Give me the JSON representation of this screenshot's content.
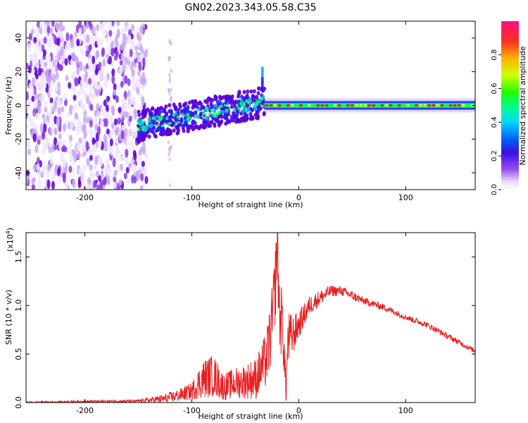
{
  "title": "GN02.2023.343.05.58.C35",
  "chart_data": [
    {
      "type": "heatmap",
      "xlabel": "Height of straight line (km)",
      "ylabel": "Frequency (Hz)",
      "xlim": [
        -255,
        165
      ],
      "ylim": [
        -50,
        50
      ],
      "xticks": [
        -200,
        -100,
        0,
        100
      ],
      "yticks": [
        -40,
        -20,
        0,
        20,
        40
      ],
      "colorbar": {
        "label": "Normalized spectral amplitude",
        "range": [
          0,
          1
        ],
        "ticks": [
          "0.0",
          "0.2",
          "0.4",
          "0.6",
          "0.8"
        ]
      },
      "features": {
        "noise_region_x": [
          -255,
          -142
        ],
        "rising_band": {
          "x_start": -150,
          "x_end": -32,
          "freq_start": -12,
          "freq_end": 2
        },
        "spike": {
          "x": -34,
          "freq_range": [
            10,
            22
          ]
        },
        "stable_line": {
          "x_start": -32,
          "x_end": 165,
          "freq": 0
        }
      },
      "colors": [
        "#f0e6ff",
        "#c9a8f5",
        "#8a3be8",
        "#5a00d6",
        "#2020ff",
        "#00b0ff",
        "#00ff66",
        "#ffff00",
        "#ff2020"
      ]
    },
    {
      "type": "line",
      "xlabel": "Height of straight line (km)",
      "ylabel": "SNR (10 * v/v)",
      "y_multiplier": "(x10",
      "y_multiplier_exp": "4",
      "xlim": [
        -255,
        165
      ],
      "ylim": [
        0,
        17500
      ],
      "xticks": [
        -200,
        -100,
        0,
        100
      ],
      "yticks": [
        0,
        5000,
        10000,
        15000
      ],
      "ytick_labels": [
        "0.0",
        "0.5",
        "1.0",
        "1.5"
      ],
      "series": [
        {
          "color": "#e82020",
          "x": [
            -255,
            -200,
            -150,
            -125,
            -110,
            -100,
            -90,
            -80,
            -70,
            -60,
            -50,
            -40,
            -35,
            -30,
            -25,
            -22,
            -20,
            -18,
            -15,
            -12,
            -10,
            -5,
            0,
            5,
            10,
            20,
            30,
            40,
            50,
            60,
            80,
            100,
            120,
            140,
            165
          ],
          "y": [
            0,
            100,
            150,
            400,
            800,
            1200,
            2400,
            2800,
            1600,
            2000,
            2200,
            2500,
            3500,
            4500,
            8000,
            12000,
            17000,
            9000,
            8000,
            1200,
            6500,
            7000,
            8000,
            9000,
            10000,
            10800,
            11500,
            11500,
            11000,
            10500,
            9800,
            8800,
            8000,
            6800,
            5300
          ],
          "noise_amp": [
            100,
            150,
            150,
            500,
            700,
            900,
            2000,
            2200,
            1400,
            1600,
            1800,
            2200,
            2500,
            3000,
            4000,
            4000,
            5000,
            4000,
            3500,
            1500,
            3000,
            2000,
            1500,
            1200,
            1000,
            800,
            600,
            500,
            500,
            400,
            350,
            300,
            300,
            300,
            250
          ]
        }
      ]
    }
  ]
}
